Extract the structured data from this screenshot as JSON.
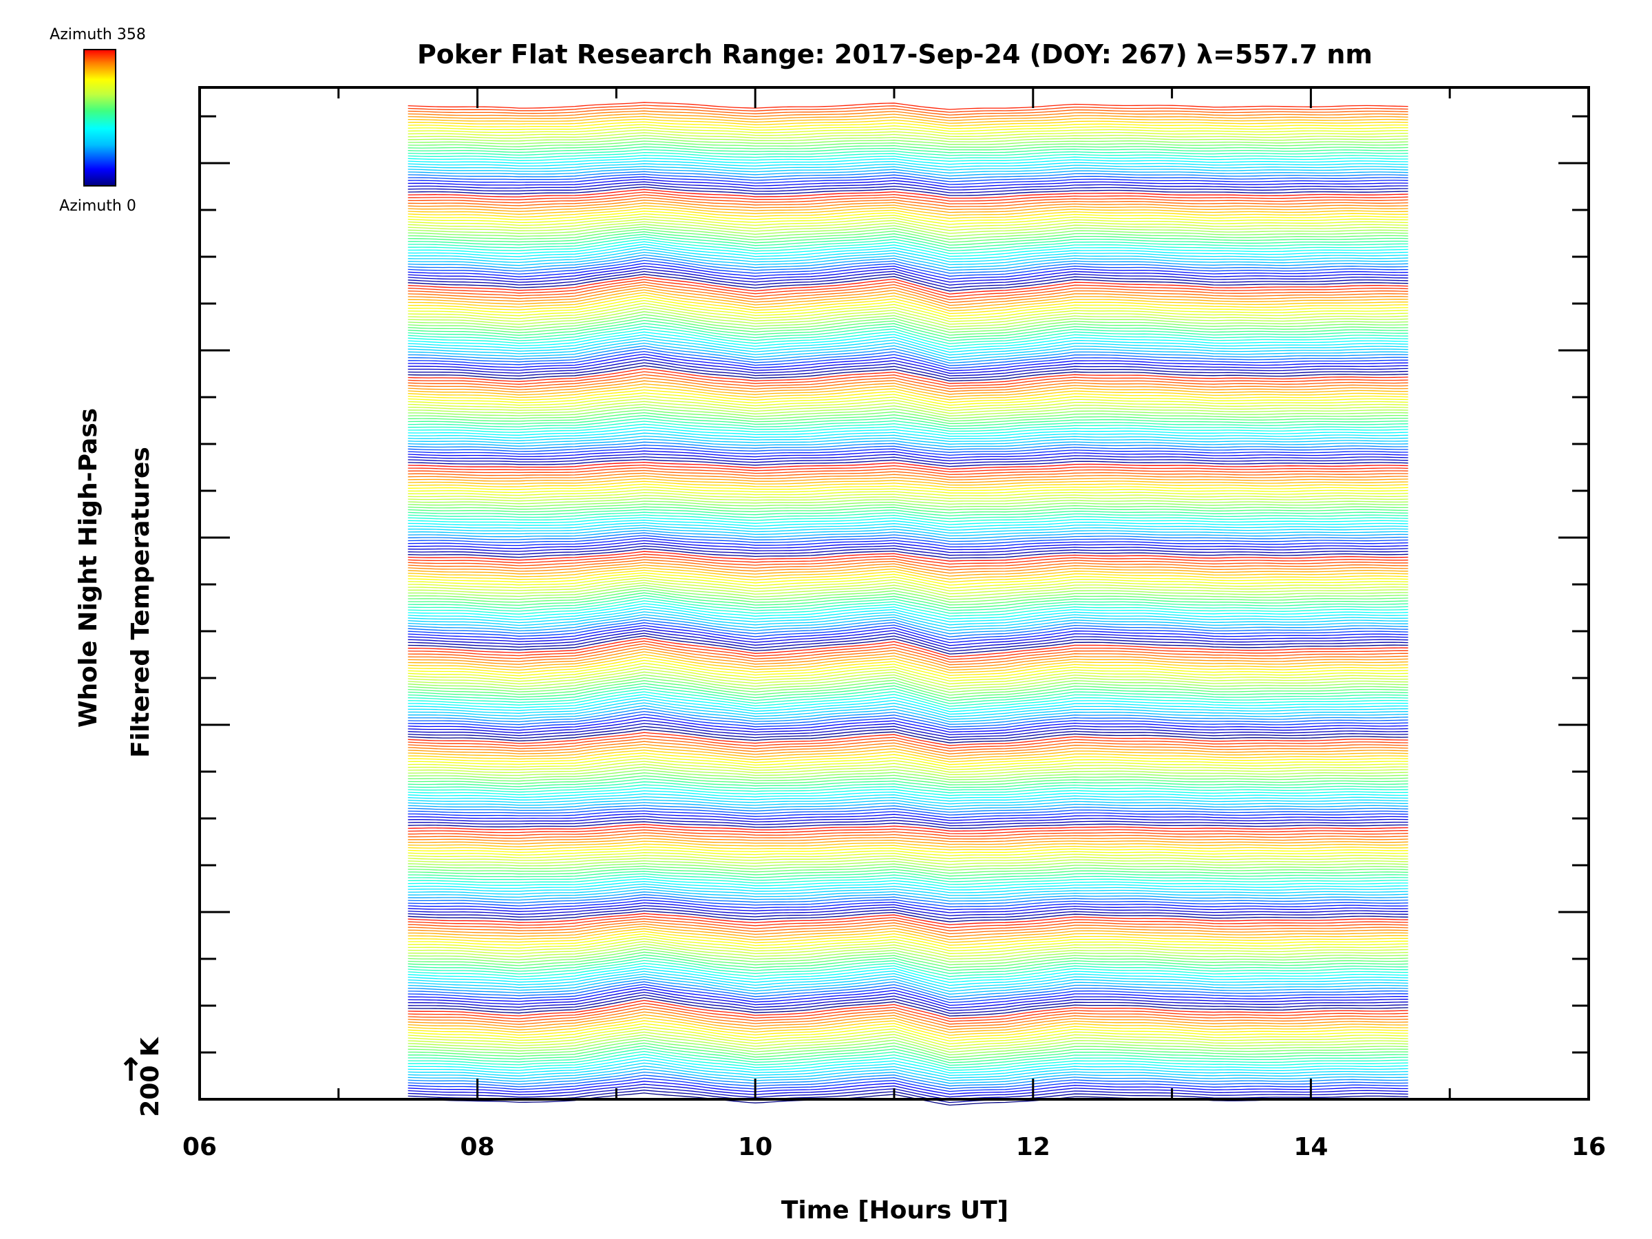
{
  "chart_data": {
    "type": "line",
    "title": "Poker Flat Research Range: 2017-Sep-24 (DOY: 267) λ=557.7 nm",
    "xlabel": "Time [Hours UT]",
    "ylabel_line1": "Whole Night High-Pass",
    "ylabel_line2": "Filtered Temperatures",
    "y_scale_label": "200 K",
    "y_scale_arrow": "↑",
    "xlim": [
      6,
      16
    ],
    "x_ticks": [
      6,
      8,
      10,
      12,
      14,
      16
    ],
    "x_tick_labels": [
      "06",
      "08",
      "10",
      "12",
      "14",
      "16"
    ],
    "grid": false,
    "data_time_range": [
      7.5,
      14.7
    ],
    "series_count": 360,
    "series_description_note": "",
    "colorbar": {
      "top_label": "Azimuth 358",
      "bottom_label": "Azimuth 0",
      "min": 0,
      "max": 358,
      "colormap": "rainbow",
      "colors": [
        "#000080",
        "#0000ff",
        "#00bfff",
        "#00ffff",
        "#40ff80",
        "#c0ff40",
        "#ffff00",
        "#ff8000",
        "#ff0000"
      ]
    },
    "common_profile": {
      "x": [
        7.5,
        7.9,
        8.3,
        8.7,
        9.2,
        9.7,
        10.0,
        10.4,
        11.0,
        11.4,
        11.8,
        12.3,
        12.8,
        13.3,
        13.8,
        14.3,
        14.7
      ],
      "anomaly": [
        0,
        -1,
        -3,
        -1,
        6,
        0,
        -3,
        -1,
        4,
        -5,
        -3,
        2,
        1,
        -1,
        -1,
        0,
        0
      ]
    }
  }
}
